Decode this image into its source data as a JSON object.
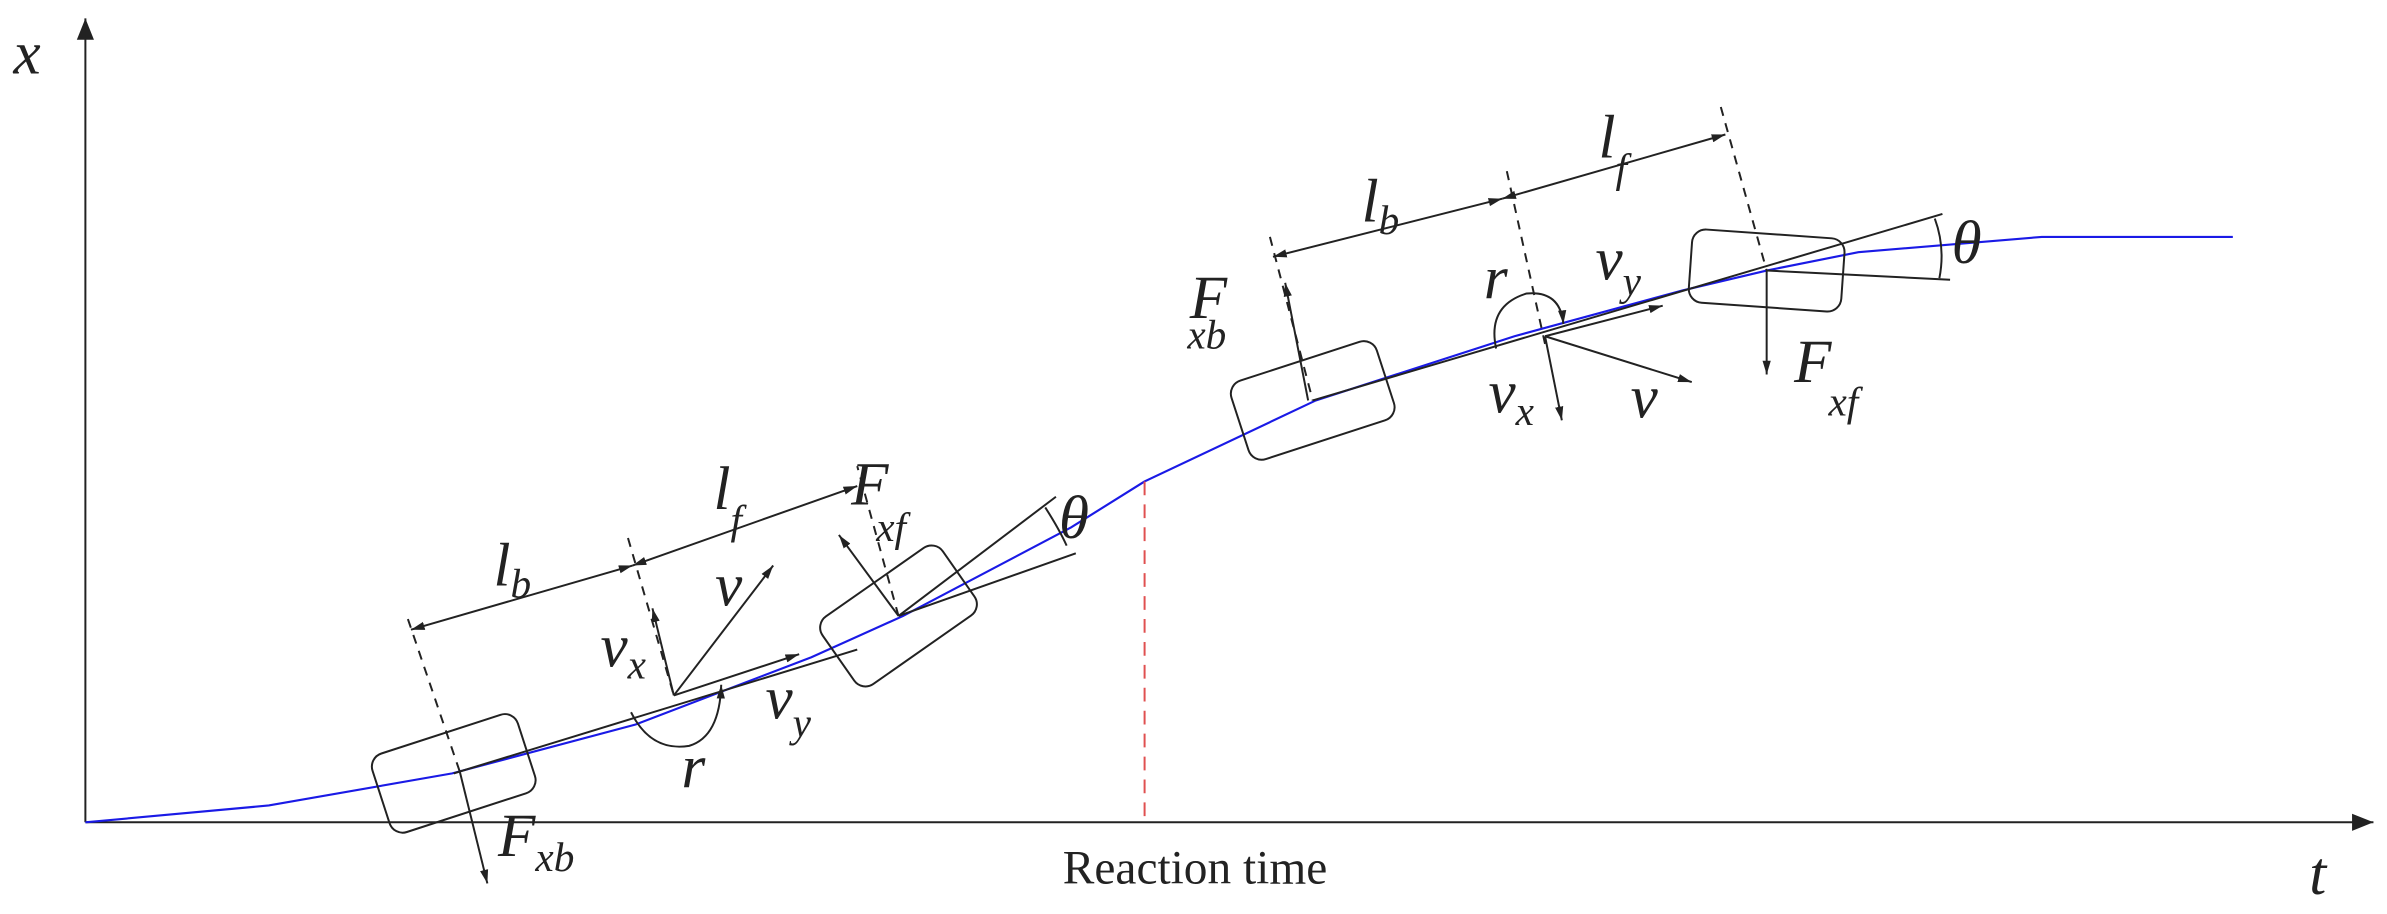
{
  "axes": {
    "x_label": "x",
    "t_label": "t"
  },
  "annotation": "Reaction time",
  "vehicle_1": {
    "l_b": [
      "l",
      "b"
    ],
    "l_f": [
      "l",
      "f"
    ],
    "v_x": [
      "v",
      "x"
    ],
    "v_y": [
      "v",
      "y"
    ],
    "v": "v",
    "r": "r",
    "theta": "θ",
    "F_xb": [
      "F",
      "xb"
    ],
    "F_xf": [
      "F",
      "xf"
    ]
  },
  "vehicle_2": {
    "l_b": [
      "l",
      "b"
    ],
    "l_f": [
      "l",
      "f"
    ],
    "v_x": [
      "v",
      "x"
    ],
    "v_y": [
      "v",
      "y"
    ],
    "v": "v",
    "r": "r",
    "theta": "θ",
    "F_xb": [
      "F",
      "xb"
    ],
    "F_xf": [
      "F",
      "xf"
    ]
  }
}
